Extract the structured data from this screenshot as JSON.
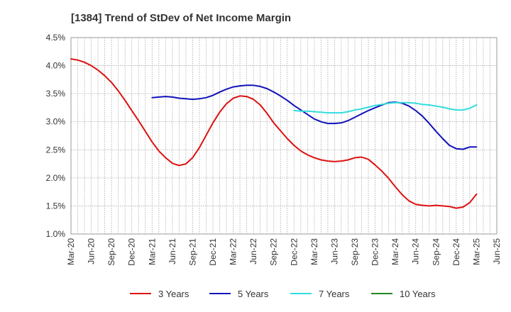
{
  "chart_data": {
    "type": "line",
    "title": "[1384]  Trend of StDev of Net Income Margin",
    "xlabel": "",
    "ylabel": "",
    "x_ticks": [
      "Mar-20",
      "Jun-20",
      "Sep-20",
      "Dec-20",
      "Mar-21",
      "Jun-21",
      "Sep-21",
      "Dec-21",
      "Mar-22",
      "Jun-22",
      "Sep-22",
      "Dec-22",
      "Mar-23",
      "Jun-23",
      "Sep-23",
      "Dec-23",
      "Mar-24",
      "Jun-24",
      "Sep-24",
      "Dec-24",
      "Mar-25",
      "Jun-25"
    ],
    "y_ticks": [
      "1.0%",
      "1.5%",
      "2.0%",
      "2.5%",
      "3.0%",
      "3.5%",
      "4.0%",
      "4.5%"
    ],
    "ylim": [
      1.0,
      4.5
    ],
    "grid": true,
    "legend_position": "bottom",
    "series": [
      {
        "name": "3 Years",
        "color": "#dd1111",
        "x": [
          "2020-03",
          "2020-04",
          "2020-05",
          "2020-06",
          "2020-07",
          "2020-08",
          "2020-09",
          "2020-10",
          "2020-11",
          "2020-12",
          "2021-01",
          "2021-02",
          "2021-03",
          "2021-04",
          "2021-05",
          "2021-06",
          "2021-07",
          "2021-08",
          "2021-09",
          "2021-10",
          "2021-11",
          "2021-12",
          "2022-01",
          "2022-02",
          "2022-03",
          "2022-04",
          "2022-05",
          "2022-06",
          "2022-07",
          "2022-08",
          "2022-09",
          "2022-10",
          "2022-11",
          "2022-12",
          "2023-01",
          "2023-02",
          "2023-03",
          "2023-04",
          "2023-05",
          "2023-06",
          "2023-07",
          "2023-08",
          "2023-09",
          "2023-10",
          "2023-11",
          "2023-12",
          "2024-01",
          "2024-02",
          "2024-03",
          "2024-04",
          "2024-05",
          "2024-06",
          "2024-07",
          "2024-08",
          "2024-09",
          "2024-10",
          "2024-11",
          "2024-12",
          "2025-01",
          "2025-02",
          "2025-03"
        ],
        "values": [
          4.12,
          4.1,
          4.06,
          4.0,
          3.92,
          3.82,
          3.7,
          3.55,
          3.38,
          3.2,
          3.02,
          2.83,
          2.64,
          2.48,
          2.36,
          2.26,
          2.22,
          2.25,
          2.36,
          2.54,
          2.76,
          2.98,
          3.17,
          3.32,
          3.42,
          3.46,
          3.45,
          3.4,
          3.3,
          3.15,
          2.98,
          2.84,
          2.7,
          2.58,
          2.48,
          2.41,
          2.36,
          2.32,
          2.3,
          2.29,
          2.3,
          2.32,
          2.36,
          2.37,
          2.33,
          2.23,
          2.12,
          1.99,
          1.84,
          1.7,
          1.59,
          1.53,
          1.51,
          1.5,
          1.51,
          1.5,
          1.49,
          1.46,
          1.48,
          1.56,
          1.71
        ]
      },
      {
        "name": "5 Years",
        "color": "#1111bb",
        "x": [
          "2021-03",
          "2021-04",
          "2021-05",
          "2021-06",
          "2021-07",
          "2021-08",
          "2021-09",
          "2021-10",
          "2021-11",
          "2021-12",
          "2022-01",
          "2022-02",
          "2022-03",
          "2022-04",
          "2022-05",
          "2022-06",
          "2022-07",
          "2022-08",
          "2022-09",
          "2022-10",
          "2022-11",
          "2022-12",
          "2023-01",
          "2023-02",
          "2023-03",
          "2023-04",
          "2023-05",
          "2023-06",
          "2023-07",
          "2023-08",
          "2023-09",
          "2023-10",
          "2023-11",
          "2023-12",
          "2024-01",
          "2024-02",
          "2024-03",
          "2024-04",
          "2024-05",
          "2024-06",
          "2024-07",
          "2024-08",
          "2024-09",
          "2024-10",
          "2024-11",
          "2024-12",
          "2025-01",
          "2025-02",
          "2025-03"
        ],
        "values": [
          3.43,
          3.44,
          3.45,
          3.44,
          3.42,
          3.41,
          3.4,
          3.41,
          3.43,
          3.47,
          3.53,
          3.58,
          3.62,
          3.64,
          3.65,
          3.65,
          3.63,
          3.59,
          3.53,
          3.46,
          3.38,
          3.29,
          3.21,
          3.13,
          3.05,
          3.0,
          2.97,
          2.97,
          2.98,
          3.02,
          3.08,
          3.14,
          3.2,
          3.25,
          3.3,
          3.34,
          3.35,
          3.33,
          3.28,
          3.2,
          3.1,
          2.97,
          2.83,
          2.7,
          2.58,
          2.52,
          2.51,
          2.55,
          2.55
        ]
      },
      {
        "name": "7 Years",
        "color": "#33dddd",
        "x": [
          "2022-12",
          "2023-01",
          "2023-02",
          "2023-03",
          "2023-04",
          "2023-05",
          "2023-06",
          "2023-07",
          "2023-08",
          "2023-09",
          "2023-10",
          "2023-11",
          "2023-12",
          "2024-01",
          "2024-02",
          "2024-03",
          "2024-04",
          "2024-05",
          "2024-06",
          "2024-07",
          "2024-08",
          "2024-09",
          "2024-10",
          "2024-11",
          "2024-12",
          "2025-01",
          "2025-02",
          "2025-03"
        ],
        "values": [
          3.2,
          3.19,
          3.19,
          3.18,
          3.17,
          3.16,
          3.16,
          3.16,
          3.18,
          3.21,
          3.23,
          3.26,
          3.29,
          3.31,
          3.33,
          3.34,
          3.34,
          3.34,
          3.33,
          3.31,
          3.3,
          3.28,
          3.26,
          3.23,
          3.21,
          3.21,
          3.24,
          3.3
        ]
      },
      {
        "name": "10 Years",
        "color": "#228822",
        "x": [],
        "values": []
      }
    ]
  }
}
